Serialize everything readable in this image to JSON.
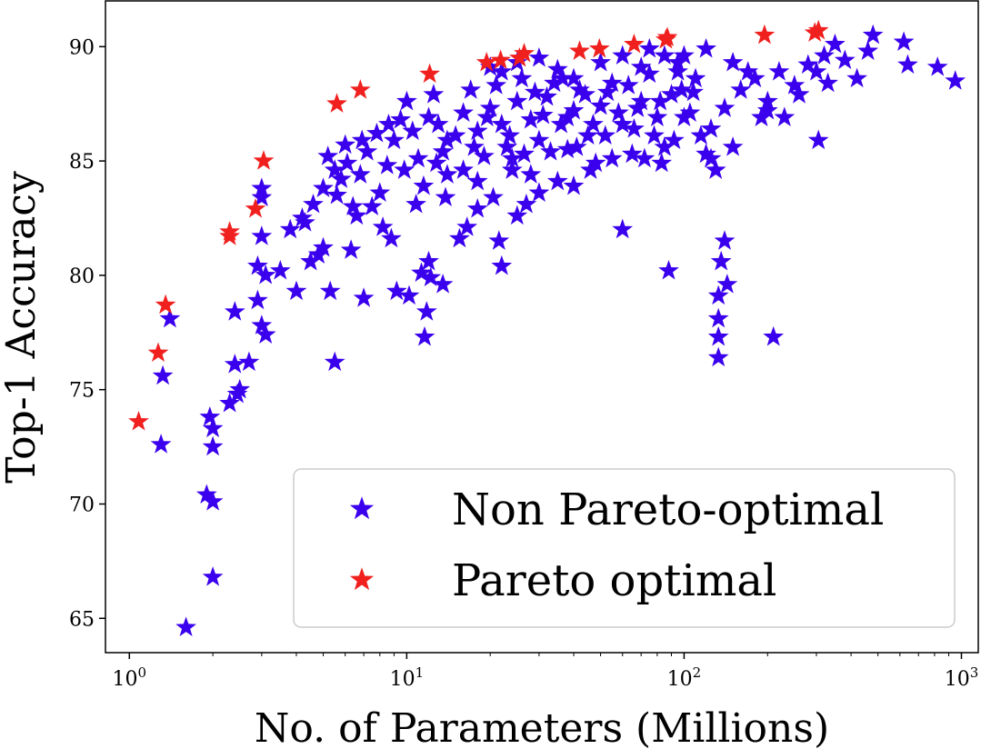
{
  "chart_data": {
    "type": "scatter",
    "title": "",
    "xlabel": "No. of Parameters (Millions)",
    "ylabel": "Top-1 Accuracy",
    "x_scale": "log",
    "xlim": [
      0.82,
      1150
    ],
    "ylim": [
      63.5,
      92
    ],
    "x_ticks": [
      {
        "value": 1,
        "base": "10",
        "exp": "0"
      },
      {
        "value": 10,
        "base": "10",
        "exp": "1"
      },
      {
        "value": 100,
        "base": "10",
        "exp": "2"
      },
      {
        "value": 1000,
        "base": "10",
        "exp": "3"
      }
    ],
    "y_ticks": [
      65,
      70,
      75,
      80,
      85,
      90
    ],
    "y_tick_labels": [
      "65",
      "70",
      "75",
      "80",
      "85",
      "90"
    ],
    "grid": false,
    "legend": {
      "placement": "lower-right",
      "entries": [
        "Non Pareto-optimal",
        "Pareto optimal"
      ]
    },
    "series": [
      {
        "name": "Non Pareto-optimal",
        "color": "#3a00ee",
        "marker": "star",
        "points": [
          [
            1.3,
            72.6
          ],
          [
            1.32,
            75.6
          ],
          [
            1.4,
            78.1
          ],
          [
            1.6,
            64.6
          ],
          [
            1.9,
            70.4
          ],
          [
            2.0,
            70.1
          ],
          [
            2.0,
            66.8
          ],
          [
            2.0,
            72.5
          ],
          [
            2.0,
            73.3
          ],
          [
            1.95,
            73.8
          ],
          [
            2.3,
            74.4
          ],
          [
            2.45,
            74.8
          ],
          [
            2.5,
            75.0
          ],
          [
            2.4,
            76.1
          ],
          [
            2.7,
            76.2
          ],
          [
            2.4,
            78.4
          ],
          [
            2.9,
            78.9
          ],
          [
            3.0,
            77.8
          ],
          [
            3.1,
            77.4
          ],
          [
            2.9,
            80.4
          ],
          [
            3.1,
            80.0
          ],
          [
            3.0,
            81.7
          ],
          [
            3.0,
            83.4
          ],
          [
            3.0,
            83.8
          ],
          [
            3.5,
            80.2
          ],
          [
            4.0,
            79.3
          ],
          [
            4.5,
            80.6
          ],
          [
            5.0,
            81.2
          ],
          [
            3.8,
            82.0
          ],
          [
            4.2,
            82.5
          ],
          [
            4.6,
            83.1
          ],
          [
            5.0,
            83.8
          ],
          [
            5.5,
            84.6
          ],
          [
            5.2,
            85.2
          ],
          [
            6.0,
            85.7
          ],
          [
            5.8,
            84.2
          ],
          [
            6.4,
            83.0
          ],
          [
            6.8,
            84.4
          ],
          [
            7.2,
            85.4
          ],
          [
            7.8,
            86.2
          ],
          [
            6.3,
            81.1
          ],
          [
            7.0,
            79.0
          ],
          [
            5.3,
            79.3
          ],
          [
            5.5,
            76.2
          ],
          [
            8.0,
            83.6
          ],
          [
            8.5,
            84.8
          ],
          [
            9.0,
            85.9
          ],
          [
            9.5,
            86.8
          ],
          [
            10.0,
            87.6
          ],
          [
            10.5,
            86.3
          ],
          [
            11.0,
            85.1
          ],
          [
            11.5,
            83.9
          ],
          [
            12.0,
            86.9
          ],
          [
            12.5,
            87.9
          ],
          [
            13.0,
            86.6
          ],
          [
            13.5,
            85.4
          ],
          [
            14.0,
            84.4
          ],
          [
            15.0,
            86.1
          ],
          [
            16.0,
            87.1
          ],
          [
            17.0,
            88.1
          ],
          [
            18.0,
            86.3
          ],
          [
            19.0,
            85.2
          ],
          [
            20.0,
            87.3
          ],
          [
            21.0,
            88.3
          ],
          [
            22.0,
            86.6
          ],
          [
            23.0,
            85.6
          ],
          [
            24.0,
            84.6
          ],
          [
            25.0,
            87.6
          ],
          [
            26.0,
            88.6
          ],
          [
            28.0,
            86.8
          ],
          [
            30.0,
            85.9
          ],
          [
            32.0,
            87.8
          ],
          [
            34.0,
            88.4
          ],
          [
            36.0,
            86.6
          ],
          [
            38.0,
            85.5
          ],
          [
            40.0,
            87.2
          ],
          [
            42.0,
            88.1
          ],
          [
            45.0,
            86.1
          ],
          [
            48.0,
            84.9
          ],
          [
            50.0,
            87.4
          ],
          [
            55.0,
            88.4
          ],
          [
            60.0,
            86.6
          ],
          [
            65.0,
            85.3
          ],
          [
            70.0,
            87.6
          ],
          [
            75.0,
            88.8
          ],
          [
            80.0,
            86.9
          ],
          [
            85.0,
            85.6
          ],
          [
            90.0,
            87.9
          ],
          [
            95.0,
            88.9
          ],
          [
            100.0,
            86.9
          ],
          [
            9.2,
            79.3
          ],
          [
            10.2,
            79.1
          ],
          [
            11.3,
            80.1
          ],
          [
            12.0,
            80.6
          ],
          [
            12.2,
            79.9
          ],
          [
            11.8,
            78.4
          ],
          [
            11.6,
            77.3
          ],
          [
            13.5,
            79.6
          ],
          [
            15.5,
            81.6
          ],
          [
            16.5,
            82.1
          ],
          [
            18.0,
            82.9
          ],
          [
            20.5,
            83.4
          ],
          [
            21.5,
            81.5
          ],
          [
            22.0,
            80.4
          ],
          [
            25.0,
            82.6
          ],
          [
            27.0,
            83.1
          ],
          [
            30.0,
            83.6
          ],
          [
            35.0,
            84.1
          ],
          [
            40.0,
            83.9
          ],
          [
            46.0,
            84.6
          ],
          [
            55.0,
            85.1
          ],
          [
            60.0,
            82.0
          ],
          [
            88.0,
            80.2
          ],
          [
            133.0,
            76.4
          ],
          [
            133.0,
            77.3
          ],
          [
            133.0,
            78.1
          ],
          [
            133.0,
            79.1
          ],
          [
            136.0,
            80.6
          ],
          [
            140.0,
            81.5
          ],
          [
            143.0,
            79.6
          ],
          [
            210.0,
            77.3
          ],
          [
            305.0,
            85.9
          ],
          [
            120.0,
            85.3
          ],
          [
            130.0,
            84.6
          ],
          [
            150.0,
            85.6
          ],
          [
            125.0,
            86.4
          ],
          [
            140.0,
            87.3
          ],
          [
            160.0,
            88.1
          ],
          [
            180.0,
            88.6
          ],
          [
            200.0,
            87.2
          ],
          [
            220.0,
            88.9
          ],
          [
            250.0,
            88.3
          ],
          [
            280.0,
            89.2
          ],
          [
            320.0,
            89.6
          ],
          [
            350.0,
            90.1
          ],
          [
            380.0,
            89.4
          ],
          [
            420.0,
            88.6
          ],
          [
            460.0,
            89.8
          ],
          [
            480.0,
            90.5
          ],
          [
            620.0,
            90.2
          ],
          [
            640.0,
            89.2
          ],
          [
            820.0,
            89.1
          ],
          [
            950.0,
            88.5
          ],
          [
            190.0,
            86.9
          ],
          [
            200.0,
            87.6
          ],
          [
            230.0,
            86.9
          ],
          [
            260.0,
            87.9
          ],
          [
            300.0,
            88.9
          ],
          [
            330.0,
            88.4
          ],
          [
            120.0,
            89.9
          ],
          [
            150.0,
            89.3
          ],
          [
            170.0,
            88.9
          ],
          [
            110.0,
            88.6
          ],
          [
            100.0,
            89.6
          ],
          [
            20.0,
            89.1
          ],
          [
            22.0,
            88.9
          ],
          [
            25.0,
            89.3
          ],
          [
            30.0,
            89.5
          ],
          [
            35.0,
            89.0
          ],
          [
            40.0,
            88.6
          ],
          [
            50.0,
            89.3
          ],
          [
            60.0,
            89.6
          ],
          [
            70.0,
            89.1
          ],
          [
            75.0,
            89.9
          ],
          [
            85.0,
            89.6
          ],
          [
            95.0,
            89.3
          ],
          [
            14.0,
            85.9
          ],
          [
            16.0,
            84.6
          ],
          [
            18.0,
            84.1
          ],
          [
            24.0,
            85.1
          ],
          [
            28.0,
            84.4
          ],
          [
            33.0,
            85.4
          ],
          [
            38.0,
            86.9
          ],
          [
            44.0,
            87.9
          ],
          [
            52.0,
            86.1
          ],
          [
            58.0,
            87.1
          ],
          [
            66.0,
            86.4
          ],
          [
            72.0,
            85.1
          ],
          [
            78.0,
            86.1
          ],
          [
            83.0,
            84.9
          ],
          [
            92.0,
            85.9
          ],
          [
            105.0,
            87.1
          ],
          [
            115.0,
            86.1
          ],
          [
            125.0,
            85.1
          ],
          [
            7.5,
            83.0
          ],
          [
            8.2,
            82.1
          ],
          [
            8.8,
            81.6
          ],
          [
            6.6,
            82.6
          ],
          [
            4.8,
            80.9
          ],
          [
            4.3,
            82.3
          ],
          [
            5.6,
            83.5
          ],
          [
            6.1,
            84.9
          ],
          [
            6.9,
            85.9
          ],
          [
            8.6,
            86.6
          ],
          [
            9.8,
            84.6
          ],
          [
            10.8,
            83.1
          ],
          [
            12.8,
            84.9
          ],
          [
            13.8,
            83.4
          ],
          [
            17.5,
            85.6
          ],
          [
            19.5,
            86.9
          ],
          [
            23.5,
            86.1
          ],
          [
            26.5,
            85.3
          ],
          [
            29.0,
            88.0
          ],
          [
            31.0,
            87.0
          ],
          [
            36.5,
            88.6
          ],
          [
            41.0,
            85.6
          ],
          [
            47.0,
            86.6
          ],
          [
            53.0,
            88.0
          ],
          [
            63.0,
            88.3
          ],
          [
            68.0,
            87.3
          ],
          [
            82.0,
            87.6
          ],
          [
            98.0,
            88.1
          ],
          [
            108.0,
            88.0
          ]
        ]
      },
      {
        "name": "Pareto optimal",
        "color": "#f0201e",
        "marker": "star",
        "points": [
          [
            1.08,
            73.6
          ],
          [
            1.27,
            76.6
          ],
          [
            1.35,
            78.7
          ],
          [
            2.3,
            81.7
          ],
          [
            2.3,
            81.9
          ],
          [
            2.85,
            82.9
          ],
          [
            3.05,
            85.0
          ],
          [
            5.6,
            87.5
          ],
          [
            6.8,
            88.1
          ],
          [
            12.1,
            88.8
          ],
          [
            19.4,
            89.3
          ],
          [
            21.8,
            89.4
          ],
          [
            25.5,
            89.5
          ],
          [
            26.5,
            89.7
          ],
          [
            42.0,
            89.8
          ],
          [
            49.5,
            89.9
          ],
          [
            66.0,
            90.1
          ],
          [
            86.0,
            90.3
          ],
          [
            87.0,
            90.4
          ],
          [
            195.0,
            90.5
          ],
          [
            296.0,
            90.6
          ],
          [
            305.0,
            90.7
          ]
        ]
      }
    ]
  }
}
